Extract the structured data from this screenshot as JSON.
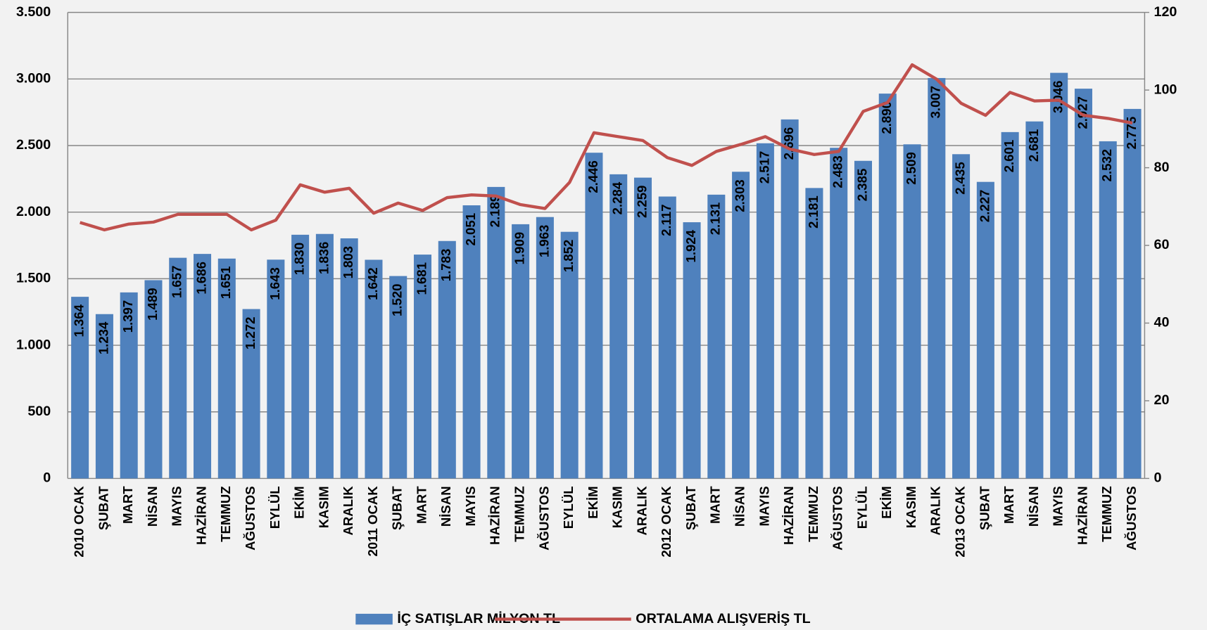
{
  "chart_data": {
    "type": "bar",
    "categories": [
      "2010 OCAK",
      "ŞUBAT",
      "MART",
      "NİSAN",
      "MAYIS",
      "HAZİRAN",
      "TEMMUZ",
      "AĞUSTOS",
      "EYLÜL",
      "EKİM",
      "KASIM",
      "ARALIK",
      "2011 OCAK",
      "ŞUBAT",
      "MART",
      "NİSAN",
      "MAYIS",
      "HAZİRAN",
      "TEMMUZ",
      "AĞUSTOS",
      "EYLÜL",
      "EKİM",
      "KASIM",
      "ARALIK",
      "2012 OCAK",
      "ŞUBAT",
      "MART",
      "NİSAN",
      "MAYIS",
      "HAZİRAN",
      "TEMMUZ",
      "AĞUSTOS",
      "EYLÜL",
      "EKİM",
      "KASIM",
      "ARALIK",
      "2013 OCAK",
      "ŞUBAT",
      "MART",
      "NİSAN",
      "MAYIS",
      "HAZİRAN",
      "TEMMUZ",
      "AĞUSTOS"
    ],
    "series": [
      {
        "name": "İÇ SATIŞLAR MİLYON TL",
        "type": "bar",
        "color": "#4f81bd",
        "values": [
          1364,
          1234,
          1397,
          1489,
          1657,
          1686,
          1651,
          1272,
          1643,
          1830,
          1836,
          1803,
          1642,
          1520,
          1681,
          1783,
          2051,
          2189,
          1909,
          1963,
          1852,
          2446,
          2284,
          2259,
          2117,
          1924,
          2131,
          2303,
          2517,
          2696,
          2181,
          2483,
          2385,
          2890,
          2509,
          3007,
          2435,
          2227,
          2601,
          2681,
          3046,
          2927,
          2532,
          2775
        ],
        "value_labels": [
          "1.364",
          "1.234",
          "1.397",
          "1.489",
          "1.657",
          "1.686",
          "1.651",
          "1.272",
          "1.643",
          "1.830",
          "1.836",
          "1.803",
          "1.642",
          "1.520",
          "1.681",
          "1.783",
          "2.051",
          "2.189",
          "1.909",
          "1.963",
          "1.852",
          "2.446",
          "2.284",
          "2.259",
          "2.117",
          "1.924",
          "2.131",
          "2.303",
          "2.517",
          "2.696",
          "2.181",
          "2.483",
          "2.385",
          "2.890",
          "2.509",
          "3.007",
          "2.435",
          "2.227",
          "2.601",
          "2.681",
          "3.046",
          "2.927",
          "2.532",
          "2.775"
        ]
      },
      {
        "name": "ORTALAMA ALIŞVERİŞ TL",
        "type": "line",
        "axis": "y2",
        "color": "#c0504d",
        "values": [
          65.9,
          64,
          65.5,
          66,
          68,
          68,
          68,
          64,
          66.5,
          75.6,
          73.7,
          74.7,
          68.3,
          70.9,
          69,
          72.3,
          73,
          72.7,
          70.5,
          69.5,
          76.2,
          89,
          88,
          87,
          82.6,
          80.6,
          84.2,
          86,
          88,
          84.8,
          83.4,
          84.2,
          94.5,
          96.8,
          106.5,
          102.8,
          96.6,
          93.5,
          99.4,
          97.2,
          97.4,
          93.5,
          92.7,
          91.5
        ]
      }
    ],
    "ylim": [
      0,
      3500
    ],
    "yticks": [
      0,
      500,
      {
        "value": 1000,
        "label": "1.000"
      },
      {
        "value": 1500,
        "label": "1.500"
      },
      {
        "value": 2000,
        "label": "2.000"
      },
      {
        "value": 2500,
        "label": "2.500"
      },
      {
        "value": 3000,
        "label": "3.000"
      },
      {
        "value": 3500,
        "label": "3.500"
      }
    ],
    "y2lim": [
      0,
      120
    ],
    "y2ticks": [
      0,
      20,
      40,
      60,
      80,
      100,
      120
    ],
    "grid": true,
    "legend": "bottom"
  }
}
